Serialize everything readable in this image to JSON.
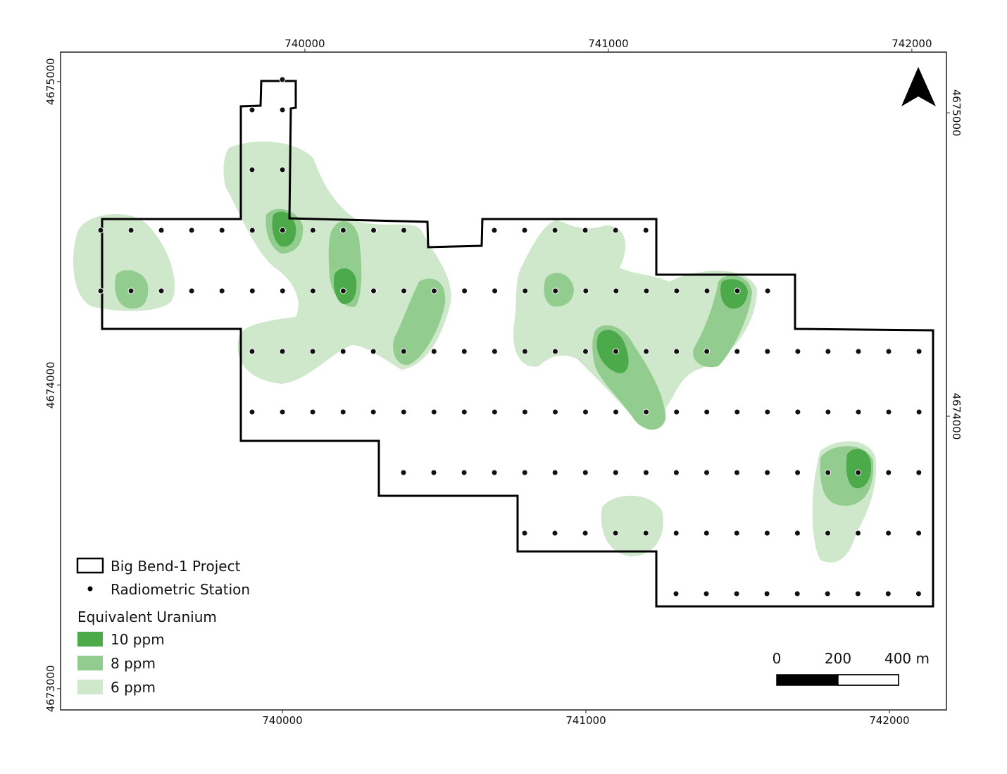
{
  "map": {
    "bottom_axis": {
      "xlim": [
        739269,
        742188
      ],
      "ticks": [
        740000,
        741000,
        742000
      ]
    },
    "top_axis": {
      "xlim": [
        739195,
        742114
      ],
      "ticks": [
        740000,
        741000,
        742000
      ]
    },
    "left_axis": {
      "ylim": [
        4672930,
        4675097
      ],
      "ticks": [
        4675000,
        4674000,
        4673000
      ]
    },
    "right_axis": {
      "ylim": [
        4673032,
        4675200
      ],
      "ticks": [
        4675000,
        4674000
      ]
    },
    "legend": {
      "project": "Big Bend-1 Project",
      "station": "Radiometric Station",
      "title": "Equivalent Uranium",
      "classes": [
        {
          "label": "10 ppm",
          "color": "#4caa4a"
        },
        {
          "label": "8 ppm",
          "color": "#92cc8e"
        },
        {
          "label": "6 ppm",
          "color": "#cfe8cc"
        }
      ]
    },
    "scale_bar": {
      "labels": [
        "0",
        "200",
        "400 m"
      ]
    }
  }
}
